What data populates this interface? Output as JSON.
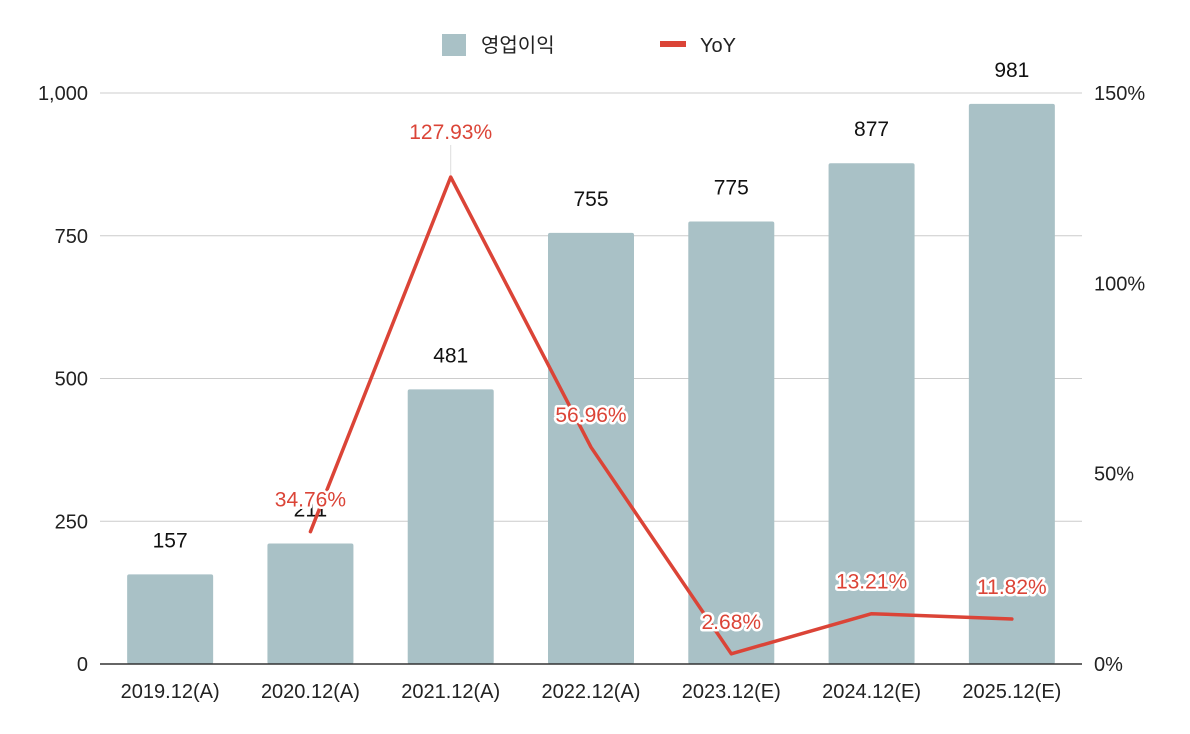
{
  "chart_data": {
    "type": "bar",
    "categories": [
      "2019.12(A)",
      "2020.12(A)",
      "2021.12(A)",
      "2022.12(A)",
      "2023.12(E)",
      "2024.12(E)",
      "2025.12(E)"
    ],
    "series": [
      {
        "name": "영업이익",
        "kind": "bar",
        "axis": "left",
        "values": [
          157,
          211,
          481,
          755,
          775,
          877,
          981
        ],
        "labels": [
          "157",
          "211",
          "481",
          "755",
          "775",
          "877",
          "981"
        ]
      },
      {
        "name": "YoY",
        "kind": "line",
        "axis": "right",
        "values": [
          null,
          34.76,
          127.93,
          56.96,
          2.68,
          13.21,
          11.82
        ],
        "labels": [
          "",
          "34.76%",
          "127.93%",
          "56.96%",
          "2.68%",
          "13.21%",
          "11.82%"
        ]
      }
    ],
    "y_left": {
      "ticks": [
        "0",
        "250",
        "500",
        "750",
        "1,000"
      ],
      "ylim": [
        0,
        1000
      ]
    },
    "y_right": {
      "ticks": [
        "0%",
        "50%",
        "100%",
        "150%"
      ],
      "ylim": [
        0,
        150
      ]
    },
    "grid": true,
    "legend": "top-center",
    "colors": {
      "bar": "#a9c1c6",
      "line": "#db4437",
      "grid": "#cccccc",
      "axis": "#333333"
    }
  }
}
